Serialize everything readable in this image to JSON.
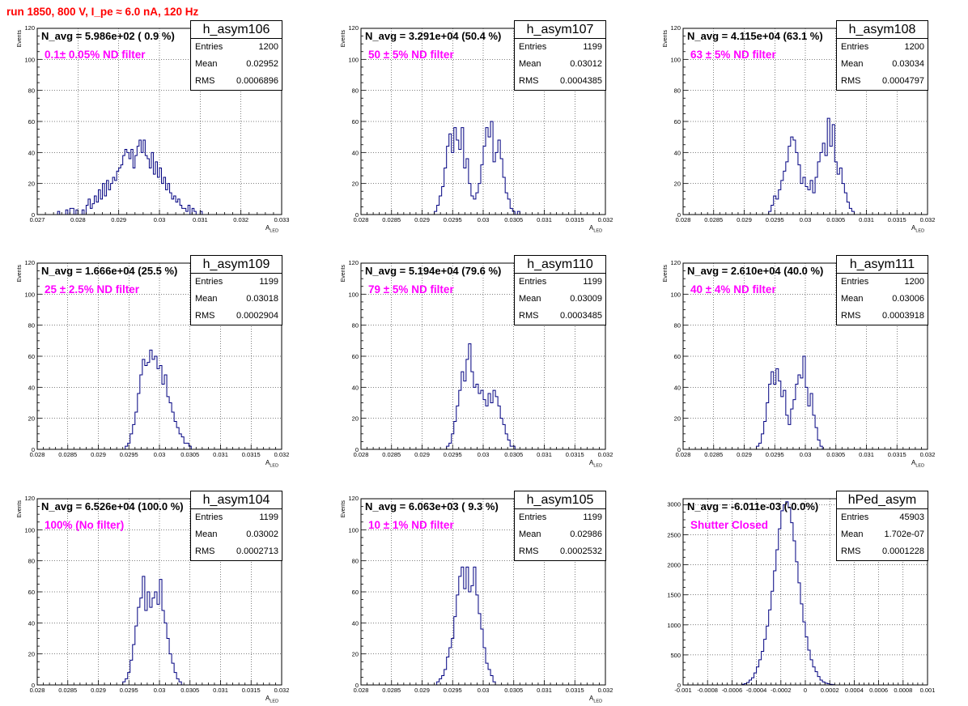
{
  "run_title": "run 1850,   800 V, I_pe ≈ 6.0 nA, 120 Hz",
  "panels": [
    {
      "name": "h_asym106",
      "navg": "N_avg = 5.986e+02 ( 0.9 %)",
      "filter_label": "0.1± 0.05% ND filter",
      "stats": {
        "entries_label": "Entries",
        "entries": "1200",
        "mean_label": "Mean",
        "mean": "0.02952",
        "rms_label": "RMS",
        "rms": "0.0006896"
      },
      "ylabel": "Events",
      "xlabel": "A",
      "xlabel_sub": "LED"
    },
    {
      "name": "h_asym107",
      "navg": "N_avg = 3.291e+04 (50.4 %)",
      "filter_label": "50 ± 5% ND filter",
      "stats": {
        "entries_label": "Entries",
        "entries": "1199",
        "mean_label": "Mean",
        "mean": "0.03012",
        "rms_label": "RMS",
        "rms": "0.0004385"
      },
      "ylabel": "Events",
      "xlabel": "A",
      "xlabel_sub": "LED"
    },
    {
      "name": "h_asym108",
      "navg": "N_avg = 4.115e+04 (63.1 %)",
      "filter_label": "63 ± 5% ND filter",
      "stats": {
        "entries_label": "Entries",
        "entries": "1200",
        "mean_label": "Mean",
        "mean": "0.03034",
        "rms_label": "RMS",
        "rms": "0.0004797"
      },
      "ylabel": "Events",
      "xlabel": "A",
      "xlabel_sub": "LED"
    },
    {
      "name": "h_asym109",
      "navg": "N_avg = 1.666e+04 (25.5 %)",
      "filter_label": "25 ± 2.5% ND filter",
      "stats": {
        "entries_label": "Entries",
        "entries": "1199",
        "mean_label": "Mean",
        "mean": "0.03018",
        "rms_label": "RMS",
        "rms": "0.0002904"
      },
      "ylabel": "Events",
      "xlabel": "A",
      "xlabel_sub": "LED"
    },
    {
      "name": "h_asym110",
      "navg": "N_avg = 5.194e+04 (79.6 %)",
      "filter_label": "79 ± 5% ND filter",
      "stats": {
        "entries_label": "Entries",
        "entries": "1199",
        "mean_label": "Mean",
        "mean": "0.03009",
        "rms_label": "RMS",
        "rms": "0.0003485"
      },
      "ylabel": "Events",
      "xlabel": "A",
      "xlabel_sub": "LED"
    },
    {
      "name": "h_asym111",
      "navg": "N_avg = 2.610e+04 (40.0 %)",
      "filter_label": "40 ± 4% ND filter",
      "stats": {
        "entries_label": "Entries",
        "entries": "1200",
        "mean_label": "Mean",
        "mean": "0.03006",
        "rms_label": "RMS",
        "rms": "0.0003918"
      },
      "ylabel": "Events",
      "xlabel": "A",
      "xlabel_sub": "LED"
    },
    {
      "name": "h_asym104",
      "navg": "N_avg = 6.526e+04 (100.0 %)",
      "filter_label": "100% (No filter)",
      "stats": {
        "entries_label": "Entries",
        "entries": "1199",
        "mean_label": "Mean",
        "mean": "0.03002",
        "rms_label": "RMS",
        "rms": "0.0002713"
      },
      "ylabel": "Events",
      "xlabel": "A",
      "xlabel_sub": "LED"
    },
    {
      "name": "h_asym105",
      "navg": "N_avg = 6.063e+03 ( 9.3 %)",
      "filter_label": "10 ± 1% ND filter",
      "stats": {
        "entries_label": "Entries",
        "entries": "1199",
        "mean_label": "Mean",
        "mean": "0.02986",
        "rms_label": "RMS",
        "rms": "0.0002532"
      },
      "ylabel": "Events",
      "xlabel": "A",
      "xlabel_sub": "LED"
    },
    {
      "name": "hPed_asym",
      "navg": "N_avg = -6.011e-03 (-0.0%)",
      "filter_label": "Shutter Closed",
      "stats": {
        "entries_label": "Entries",
        "entries": "45903",
        "mean_label": "Mean",
        "mean": "1.702e-07",
        "rms_label": "RMS",
        "rms": "0.0001228"
      },
      "ylabel": "",
      "xlabel": "",
      "xlabel_sub": ""
    }
  ],
  "chart_data": [
    {
      "type": "bar",
      "title": "h_asym106",
      "ylabel": "Events",
      "xlabel": "A_LED",
      "xlim": [
        0.027,
        0.033
      ],
      "ylim": [
        0,
        120
      ],
      "xticks": [
        0.027,
        0.028,
        0.029,
        0.03,
        0.031,
        0.032,
        0.033
      ],
      "xtick_labels": [
        "0.027",
        "0.028",
        "0.029",
        "0.03",
        "0.031",
        "0.032",
        "0.033"
      ],
      "yticks": [
        0,
        20,
        40,
        60,
        80,
        100,
        120
      ],
      "grid": true,
      "bin_width": 5e-05,
      "x_start": 0.0275,
      "values": [
        2,
        0,
        0,
        0,
        3,
        0,
        4,
        4,
        0,
        3,
        0,
        0,
        3,
        0,
        6,
        10,
        4,
        7,
        12,
        8,
        16,
        10,
        20,
        12,
        22,
        16,
        20,
        24,
        22,
        28,
        30,
        32,
        38,
        42,
        40,
        36,
        42,
        30,
        38,
        44,
        48,
        40,
        48,
        38,
        36,
        30,
        40,
        26,
        34,
        24,
        30,
        20,
        24,
        16,
        20,
        14,
        10,
        12,
        8,
        10,
        6,
        4,
        4,
        2,
        6,
        0,
        4,
        2,
        0,
        0,
        2
      ]
    },
    {
      "type": "bar",
      "title": "h_asym107",
      "ylabel": "Events",
      "xlabel": "A_LED",
      "xlim": [
        0.028,
        0.032
      ],
      "ylim": [
        0,
        120
      ],
      "xticks": [
        0.028,
        0.0285,
        0.029,
        0.0295,
        0.03,
        0.0305,
        0.031,
        0.0315,
        0.032
      ],
      "xtick_labels": [
        "0.028",
        "0.0285",
        "0.029",
        "0.0295",
        "0.03",
        "0.0305",
        "0.031",
        "0.0315",
        "0.032"
      ],
      "yticks": [
        0,
        20,
        40,
        60,
        80,
        100,
        120
      ],
      "grid": true,
      "bin_width": 4e-05,
      "x_start": 0.0292,
      "values": [
        2,
        6,
        12,
        18,
        30,
        44,
        52,
        40,
        56,
        48,
        42,
        56,
        30,
        36,
        20,
        12,
        10,
        14,
        20,
        32,
        44,
        56,
        50,
        60,
        34,
        40,
        48,
        36,
        24,
        14,
        10,
        4,
        2,
        0,
        2
      ]
    },
    {
      "type": "bar",
      "title": "h_asym108",
      "ylabel": "Events",
      "xlabel": "A_LED",
      "xlim": [
        0.028,
        0.032
      ],
      "ylim": [
        0,
        120
      ],
      "xticks": [
        0.028,
        0.0285,
        0.029,
        0.0295,
        0.03,
        0.0305,
        0.031,
        0.0315,
        0.032
      ],
      "xtick_labels": [
        "0.028",
        "0.0285",
        "0.029",
        "0.0295",
        "0.03",
        "0.0305",
        "0.031",
        "0.0315",
        "0.032"
      ],
      "yticks": [
        0,
        20,
        40,
        60,
        80,
        100,
        120
      ],
      "grid": true,
      "bin_width": 4e-05,
      "x_start": 0.0294,
      "values": [
        2,
        6,
        12,
        10,
        16,
        22,
        28,
        34,
        44,
        50,
        48,
        40,
        32,
        20,
        24,
        18,
        16,
        22,
        14,
        24,
        34,
        40,
        46,
        38,
        62,
        44,
        58,
        34,
        26,
        30,
        20,
        14,
        8,
        4,
        2
      ]
    },
    {
      "type": "bar",
      "title": "h_asym109",
      "ylabel": "Events",
      "xlabel": "A_LED",
      "xlim": [
        0.028,
        0.032
      ],
      "ylim": [
        0,
        120
      ],
      "xticks": [
        0.028,
        0.0285,
        0.029,
        0.0295,
        0.03,
        0.0305,
        0.031,
        0.0315,
        0.032
      ],
      "xtick_labels": [
        "0.028",
        "0.0285",
        "0.029",
        "0.0295",
        "0.03",
        "0.0305",
        "0.031",
        "0.0315",
        "0.032"
      ],
      "yticks": [
        0,
        20,
        40,
        60,
        80,
        100,
        120
      ],
      "grid": true,
      "bin_width": 4e-05,
      "x_start": 0.02944,
      "values": [
        2,
        4,
        10,
        16,
        24,
        36,
        48,
        58,
        54,
        56,
        64,
        58,
        60,
        52,
        54,
        42,
        48,
        34,
        30,
        24,
        18,
        14,
        10,
        8,
        4,
        4,
        2
      ]
    },
    {
      "type": "bar",
      "title": "h_asym110",
      "ylabel": "Events",
      "xlabel": "A_LED",
      "xlim": [
        0.028,
        0.032
      ],
      "ylim": [
        0,
        120
      ],
      "xticks": [
        0.028,
        0.0285,
        0.029,
        0.0295,
        0.03,
        0.0305,
        0.031,
        0.0315,
        0.032
      ],
      "xtick_labels": [
        "0.028",
        "0.0285",
        "0.029",
        "0.0295",
        "0.03",
        "0.0305",
        "0.031",
        "0.0315",
        "0.032"
      ],
      "yticks": [
        0,
        20,
        40,
        60,
        80,
        100,
        120
      ],
      "grid": true,
      "bin_width": 4e-05,
      "x_start": 0.0294,
      "values": [
        2,
        4,
        10,
        18,
        28,
        38,
        50,
        44,
        58,
        68,
        50,
        40,
        42,
        36,
        38,
        32,
        28,
        36,
        30,
        38,
        34,
        28,
        20,
        16,
        10,
        6,
        2,
        2
      ]
    },
    {
      "type": "bar",
      "title": "h_asym111",
      "ylabel": "Events",
      "xlabel": "A_LED",
      "xlim": [
        0.028,
        0.032
      ],
      "ylim": [
        0,
        120
      ],
      "xticks": [
        0.028,
        0.0285,
        0.029,
        0.0295,
        0.03,
        0.0305,
        0.031,
        0.0315,
        0.032
      ],
      "xtick_labels": [
        "0.028",
        "0.0285",
        "0.029",
        "0.0295",
        "0.03",
        "0.0305",
        "0.031",
        "0.0315",
        "0.032"
      ],
      "yticks": [
        0,
        20,
        40,
        60,
        80,
        100,
        120
      ],
      "grid": true,
      "bin_width": 4e-05,
      "x_start": 0.0292,
      "values": [
        2,
        4,
        10,
        18,
        30,
        42,
        50,
        42,
        52,
        44,
        34,
        38,
        22,
        16,
        26,
        32,
        42,
        48,
        46,
        60,
        40,
        28,
        36,
        22,
        14,
        6,
        2
      ]
    },
    {
      "type": "bar",
      "title": "h_asym104",
      "ylabel": "Events",
      "xlabel": "A_LED",
      "xlim": [
        0.028,
        0.032
      ],
      "ylim": [
        0,
        120
      ],
      "xticks": [
        0.028,
        0.0285,
        0.029,
        0.0295,
        0.03,
        0.0305,
        0.031,
        0.0315,
        0.032
      ],
      "xtick_labels": [
        "0.028",
        "0.0285",
        "0.029",
        "0.0295",
        "0.03",
        "0.0305",
        "0.031",
        "0.0315",
        "0.032"
      ],
      "yticks": [
        0,
        20,
        40,
        60,
        80,
        100,
        120
      ],
      "grid": true,
      "bin_width": 4e-05,
      "x_start": 0.0294,
      "values": [
        2,
        4,
        8,
        16,
        26,
        38,
        50,
        56,
        70,
        48,
        60,
        50,
        56,
        60,
        52,
        68,
        48,
        40,
        30,
        20,
        14,
        8,
        4,
        2
      ]
    },
    {
      "type": "bar",
      "title": "h_asym105",
      "ylabel": "Events",
      "xlabel": "A_LED",
      "xlim": [
        0.028,
        0.032
      ],
      "ylim": [
        0,
        120
      ],
      "xticks": [
        0.028,
        0.0285,
        0.029,
        0.0295,
        0.03,
        0.0305,
        0.031,
        0.0315,
        0.032
      ],
      "xtick_labels": [
        "0.028",
        "0.0285",
        "0.029",
        "0.0295",
        "0.03",
        "0.0305",
        "0.031",
        "0.0315",
        "0.032"
      ],
      "yticks": [
        0,
        20,
        40,
        60,
        80,
        100,
        120
      ],
      "grid": true,
      "bin_width": 4e-05,
      "x_start": 0.02924,
      "values": [
        2,
        4,
        6,
        10,
        18,
        24,
        30,
        44,
        58,
        70,
        76,
        62,
        76,
        60,
        64,
        76,
        58,
        46,
        36,
        24,
        14,
        10,
        6,
        2
      ]
    },
    {
      "type": "bar",
      "title": "hPed_asym",
      "ylabel": "",
      "xlabel": "",
      "xlim": [
        -0.001,
        0.001
      ],
      "ylim": [
        0,
        3100
      ],
      "xticks": [
        -0.001,
        -0.0008,
        -0.0006,
        -0.0004,
        -0.0002,
        0,
        0.0002,
        0.0004,
        0.0006,
        0.0008,
        0.001
      ],
      "xtick_labels": [
        "-0.001",
        "-0.0008",
        "-0.0006",
        "-0.0004",
        "-0.0002",
        "0",
        "0.0002",
        "0.0004",
        "0.0006",
        "0.0008",
        "0.001"
      ],
      "yticks": [
        0,
        500,
        1000,
        1500,
        2000,
        2500,
        3000
      ],
      "grid": true,
      "bin_width": 2e-05,
      "x_start": -0.00052,
      "values": [
        10,
        20,
        40,
        80,
        120,
        200,
        300,
        420,
        560,
        760,
        980,
        1250,
        1560,
        1900,
        2250,
        2600,
        2900,
        3000,
        3050,
        2950,
        2700,
        2400,
        2050,
        1700,
        1350,
        1050,
        800,
        580,
        420,
        300,
        220,
        140,
        80,
        50,
        30,
        20,
        10,
        5
      ]
    }
  ]
}
